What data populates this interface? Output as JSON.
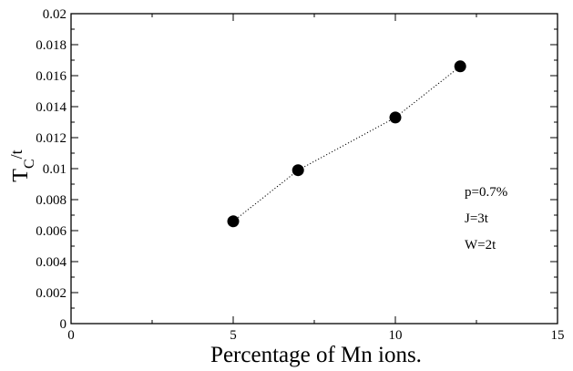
{
  "chart_data": {
    "type": "scatter",
    "title": "",
    "xlabel": "Percentage of Mn ions.",
    "ylabel": "T_C/t",
    "ylabel_main": "T",
    "ylabel_sub": "C",
    "ylabel_rest": "/t",
    "xlim": [
      0,
      15
    ],
    "ylim": [
      0,
      0.02
    ],
    "x_ticks": [
      0,
      5,
      10,
      15
    ],
    "x_tick_labels": [
      "0",
      "5",
      "10",
      "15"
    ],
    "y_ticks": [
      0,
      0.002,
      0.004,
      0.006,
      0.008,
      0.01,
      0.012,
      0.014,
      0.016,
      0.018,
      0.02
    ],
    "y_tick_labels": [
      "0",
      "0.002",
      "0.004",
      "0.006",
      "0.008",
      "0.01",
      "0.012",
      "0.014",
      "0.016",
      "0.018",
      "0.02"
    ],
    "grid": false,
    "line_style": "dotted",
    "marker": "filled circle",
    "series": [
      {
        "x": [
          5,
          7,
          10,
          12
        ],
        "y": [
          0.0066,
          0.0099,
          0.0133,
          0.0166
        ]
      }
    ],
    "annotations": [
      "p=0.7%",
      "J=3t",
      "W=2t"
    ]
  }
}
